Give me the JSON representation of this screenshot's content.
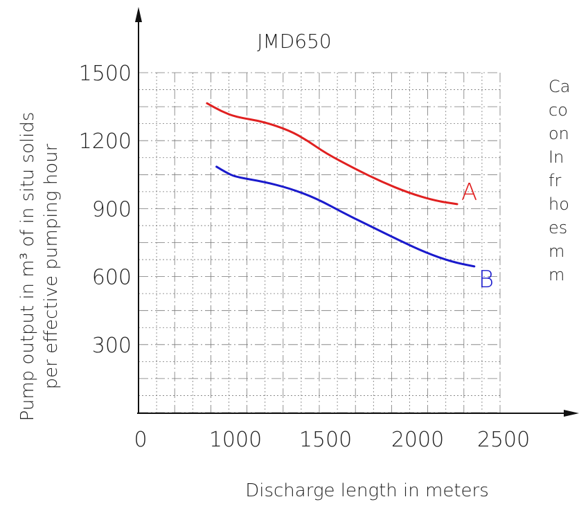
{
  "chart_data": {
    "type": "line",
    "title": "JMD650",
    "xlabel": "Discharge length in meters",
    "ylabel_lines": [
      "Pump output in m³ of in situ solids",
      "per effective pumping hour"
    ],
    "x_ticks": [
      "0",
      "1000",
      "1500",
      "2000",
      "2500"
    ],
    "y_ticks": [
      "1500",
      "1200",
      "900",
      "600",
      "300"
    ],
    "ylim": [
      0,
      1500
    ],
    "grid": true,
    "series": [
      {
        "name": "A",
        "color": "#e02020",
        "points": [
          [
            700,
            1365
          ],
          [
            850,
            1330
          ],
          [
            1000,
            1305
          ],
          [
            1150,
            1285
          ],
          [
            1300,
            1245
          ],
          [
            1400,
            1200
          ],
          [
            1500,
            1145
          ],
          [
            1650,
            1080
          ],
          [
            1800,
            1020
          ],
          [
            1950,
            970
          ],
          [
            2100,
            935
          ],
          [
            2230,
            920
          ]
        ]
      },
      {
        "name": "B",
        "color": "#1a1acc",
        "points": [
          [
            800,
            1085
          ],
          [
            900,
            1060
          ],
          [
            1000,
            1040
          ],
          [
            1150,
            1020
          ],
          [
            1300,
            990
          ],
          [
            1450,
            945
          ],
          [
            1600,
            880
          ],
          [
            1750,
            820
          ],
          [
            1900,
            760
          ],
          [
            2050,
            705
          ],
          [
            2200,
            665
          ],
          [
            2330,
            645
          ]
        ]
      }
    ],
    "side_text": [
      "Ca",
      "co",
      "on",
      "In",
      "fr",
      "ho",
      "es",
      "m",
      "m"
    ]
  }
}
